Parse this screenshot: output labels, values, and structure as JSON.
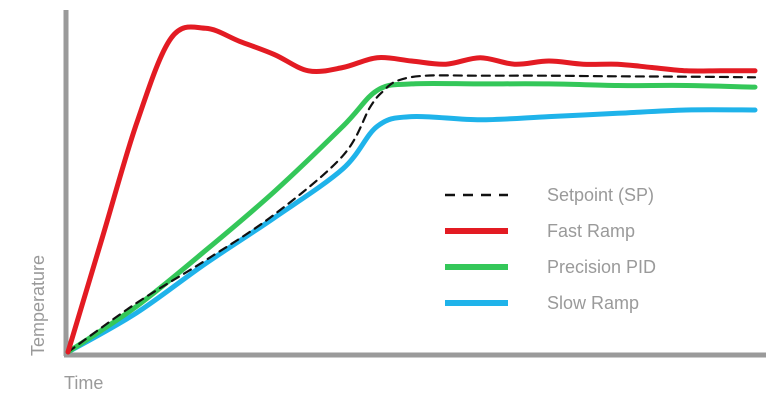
{
  "chart_data": {
    "type": "line",
    "xlabel": "Time",
    "ylabel": "Temperature",
    "xlim": [
      0,
      100
    ],
    "ylim": [
      0,
      100
    ],
    "grid": false,
    "legend_position": "center-right",
    "axis_color": "#9a9a9a",
    "series": [
      {
        "name": "Setpoint (SP)",
        "color": "#111111",
        "dashed": true,
        "x": [
          0,
          10,
          20,
          30,
          40,
          44,
          46,
          48,
          52,
          60,
          70,
          80,
          90,
          100
        ],
        "y": [
          0,
          15,
          28,
          42,
          60,
          75,
          80,
          83,
          84.5,
          84.5,
          84.5,
          84.3,
          84.2,
          84
        ]
      },
      {
        "name": "Fast Ramp",
        "color": "#e31b23",
        "dashed": false,
        "x": [
          0,
          5,
          10,
          15,
          20,
          25,
          30,
          35,
          40,
          45,
          50,
          55,
          60,
          65,
          70,
          75,
          80,
          85,
          90,
          95,
          100
        ],
        "y": [
          0,
          35,
          70,
          96,
          99,
          95,
          91,
          86,
          87,
          90,
          89,
          88,
          90,
          88,
          89,
          88,
          88,
          87,
          86,
          86,
          86
        ]
      },
      {
        "name": "Precision PID",
        "color": "#34c759",
        "dashed": false,
        "x": [
          0,
          10,
          20,
          30,
          40,
          45,
          50,
          60,
          70,
          80,
          90,
          100
        ],
        "y": [
          0,
          14,
          31,
          49,
          69,
          80,
          82,
          82,
          82,
          81.5,
          81.5,
          81
        ]
      },
      {
        "name": "Slow Ramp",
        "color": "#1fb3ea",
        "dashed": false,
        "x": [
          0,
          10,
          20,
          30,
          40,
          45,
          50,
          60,
          70,
          80,
          90,
          100
        ],
        "y": [
          0,
          12,
          27,
          41,
          56,
          69,
          72,
          71,
          72,
          73,
          74,
          74
        ]
      }
    ]
  }
}
